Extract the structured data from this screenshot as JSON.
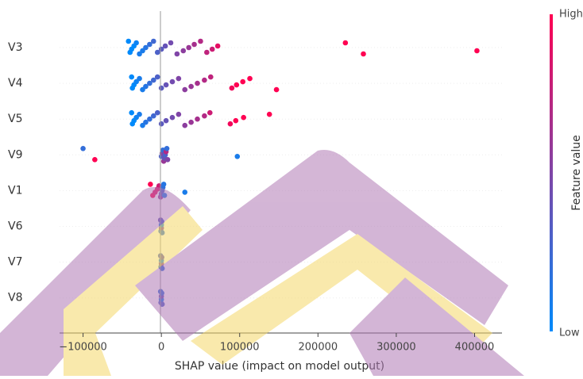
{
  "chart_data": {
    "type": "scatter",
    "xlabel": "SHAP value (impact on model output)",
    "colorbar_label": "Feature value",
    "colorbar_high": "High",
    "colorbar_low": "Low",
    "colormap": [
      "#008afb",
      "#ff0052"
    ],
    "xlim": [
      -130000,
      435000
    ],
    "xticks": [
      {
        "value": -100000,
        "label": "−100000"
      },
      0,
      100000,
      200000,
      300000,
      400000
    ],
    "series": [
      {
        "name": "V3",
        "x": [
          -42000,
          -40000,
          -38000,
          -35000,
          -32000,
          -28000,
          -24000,
          -20000,
          -15000,
          -10000,
          -5000,
          0,
          5000,
          12000,
          20000,
          28000,
          35000,
          42000,
          50000,
          58000,
          65000,
          72000,
          235000,
          258000,
          403000
        ],
        "feature_values": [
          0,
          0,
          0,
          0,
          0.05,
          0.1,
          0.1,
          0.15,
          0.2,
          0.25,
          0.3,
          0.35,
          0.4,
          0.45,
          0.5,
          0.55,
          0.6,
          0.65,
          0.7,
          0.75,
          0.8,
          0.9,
          1,
          1,
          1
        ]
      },
      {
        "name": "V4",
        "x": [
          -38000,
          -37000,
          -35000,
          -32000,
          -28000,
          -24000,
          -20000,
          -15000,
          -10000,
          -5000,
          0,
          6000,
          14000,
          22000,
          30000,
          38000,
          46000,
          55000,
          63000,
          90000,
          96000,
          104000,
          113000,
          147000
        ],
        "feature_values": [
          0,
          0,
          0,
          0.05,
          0.1,
          0.1,
          0.15,
          0.2,
          0.25,
          0.3,
          0.35,
          0.4,
          0.45,
          0.5,
          0.55,
          0.6,
          0.65,
          0.7,
          0.75,
          0.95,
          1,
          1,
          1,
          1
        ]
      },
      {
        "name": "V5",
        "x": [
          -38000,
          -37000,
          -35000,
          -32000,
          -28000,
          -24000,
          -20000,
          -15000,
          -10000,
          -5000,
          0,
          6000,
          14000,
          22000,
          30000,
          38000,
          46000,
          55000,
          62000,
          88000,
          95000,
          105000,
          138000
        ],
        "feature_values": [
          0,
          0,
          0,
          0.05,
          0.1,
          0.1,
          0.15,
          0.2,
          0.25,
          0.3,
          0.35,
          0.4,
          0.45,
          0.5,
          0.55,
          0.6,
          0.65,
          0.7,
          0.8,
          0.95,
          1,
          1,
          1
        ]
      },
      {
        "name": "V9",
        "x": [
          -100000,
          -85000,
          0,
          1000,
          2000,
          3000,
          4000,
          5000,
          6000,
          7000,
          8000,
          97000
        ],
        "feature_values": [
          0.2,
          1,
          0.3,
          0.5,
          0.2,
          0.6,
          0.4,
          0.3,
          0.7,
          0.2,
          0.5,
          0.1
        ]
      },
      {
        "name": "V1",
        "x": [
          -14000,
          -11000,
          -8000,
          -5000,
          -3000,
          -1000,
          0,
          1000,
          2000,
          3000,
          4000,
          30000
        ],
        "feature_values": [
          1,
          1,
          0.9,
          0.9,
          0.8,
          0.6,
          0.4,
          0.3,
          0.2,
          0.15,
          0.1,
          0.1
        ]
      },
      {
        "name": "V6",
        "x": [
          -1000,
          -500,
          0,
          0,
          500,
          1000
        ],
        "feature_values": [
          0.4,
          0.2,
          0.5,
          0.1,
          0.3,
          0.2
        ]
      },
      {
        "name": "V7",
        "x": [
          -1000,
          -500,
          0,
          0,
          500,
          1000
        ],
        "feature_values": [
          0.3,
          0.2,
          0.5,
          0.1,
          0.4,
          0.2
        ]
      },
      {
        "name": "V8",
        "x": [
          -1000,
          -500,
          0,
          0,
          500,
          1000
        ],
        "feature_values": [
          0.2,
          0.3,
          0.1,
          0.4,
          0.2,
          0.3
        ]
      }
    ]
  }
}
